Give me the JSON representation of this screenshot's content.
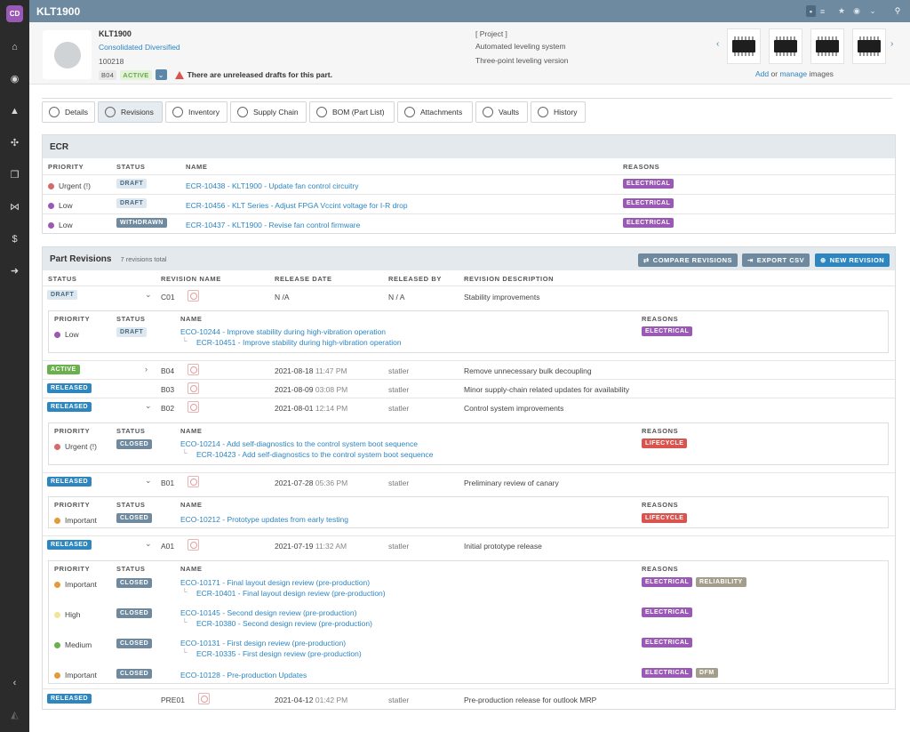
{
  "app": {
    "logo": "CD",
    "title": "KLT1900"
  },
  "sidebar": [
    "home-icon",
    "dashboard-icon",
    "components-icon",
    "network-icon",
    "box-icon",
    "share-icon",
    "dollar-icon",
    "arrow-right-icon"
  ],
  "sidebar_collapse": "‹",
  "header": {
    "part_number": "KLT1900",
    "company": "Consolidated Diversified",
    "number": "100218",
    "revision": "B04",
    "status": "ACTIVE",
    "warning": "There are unreleased drafts for this part.",
    "category": "[ Project ]",
    "description1": "Automated leveling system",
    "description2": "Three-point leveling version",
    "images_add": "Add",
    "images_or": "or",
    "images_manage": "manage",
    "images_suffix": "images"
  },
  "tabs": [
    {
      "label": "Details",
      "icon": "details-icon"
    },
    {
      "label": "Revisions",
      "icon": "revisions-icon"
    },
    {
      "label": "Inventory",
      "icon": "inventory-icon"
    },
    {
      "label": "Supply Chain",
      "icon": "supply-chain-icon"
    },
    {
      "label": "BOM (Part List)",
      "icon": "bom-icon"
    },
    {
      "label": "Attachments",
      "icon": "attachments-icon"
    },
    {
      "label": "Vaults",
      "icon": "vaults-icon"
    },
    {
      "label": "History",
      "icon": "history-icon"
    }
  ],
  "ecr": {
    "title": "ECR",
    "headers": {
      "priority": "PRIORITY",
      "status": "STATUS",
      "name": "NAME",
      "reasons": "REASONS"
    },
    "rows": [
      {
        "priority": "Urgent (!)",
        "color": "#d36b6b",
        "status": "DRAFT",
        "name": "ECR-10438 - KLT1900 - Update fan control circuitry",
        "reason": "ELECTRICAL"
      },
      {
        "priority": "Low",
        "color": "#9b59b6",
        "status": "DRAFT",
        "name": "ECR-10456 - KLT Series - Adjust FPGA Vccint voltage for I-R drop",
        "reason": "ELECTRICAL"
      },
      {
        "priority": "Low",
        "color": "#9b59b6",
        "status": "WITHDRAWN",
        "name": "ECR-10437 - KLT1900 - Revise fan control firmware",
        "reason": "ELECTRICAL"
      }
    ]
  },
  "revisions": {
    "title": "Part Revisions",
    "count": "7 revisions total",
    "buttons": {
      "compare": "COMPARE REVISIONS",
      "export": "EXPORT CSV",
      "new": "NEW REVISION"
    },
    "headers": {
      "status": "STATUS",
      "name": "REVISION NAME",
      "date": "RELEASE DATE",
      "by": "RELEASED BY",
      "desc": "REVISION DESCRIPTION"
    },
    "sub_headers": {
      "priority": "PRIORITY",
      "status": "STATUS",
      "name": "NAME",
      "reasons": "REASONS"
    },
    "rows": [
      {
        "status": "DRAFT",
        "name": "C01",
        "date": "N /A",
        "time": "",
        "by": "N / A",
        "desc": "Stability improvements"
      },
      {
        "status": "ACTIVE",
        "name": "B04",
        "date": "2021-08-18",
        "time": "11:47 PM",
        "by": "statler",
        "desc": "Remove unnecessary bulk decoupling"
      },
      {
        "status": "RELEASED",
        "name": "B03",
        "date": "2021-08-09",
        "time": "03:08 PM",
        "by": "statler",
        "desc": "Minor supply-chain related updates for availability"
      },
      {
        "status": "RELEASED",
        "name": "B02",
        "date": "2021-08-01",
        "time": "12:14 PM",
        "by": "statler",
        "desc": "Control system improvements"
      },
      {
        "status": "RELEASED",
        "name": "B01",
        "date": "2021-07-28",
        "time": "05:36 PM",
        "by": "statler",
        "desc": "Preliminary review of canary"
      },
      {
        "status": "RELEASED",
        "name": "A01",
        "date": "2021-07-19",
        "time": "11:32 AM",
        "by": "statler",
        "desc": "Initial prototype release"
      },
      {
        "status": "RELEASED",
        "name": "PRE01",
        "date": "2021-04-12",
        "time": "01:42 PM",
        "by": "statler",
        "desc": "Pre-production release for outlook MRP"
      }
    ],
    "c01_changes": [
      {
        "priority": "Low",
        "color": "#9b59b6",
        "status": "DRAFT",
        "eco": "ECO-10244 - Improve stability during high-vibration operation",
        "ecr": "ECR-10451 - Improve stability during high-vibration operation",
        "reasons": [
          "ELECTRICAL"
        ]
      }
    ],
    "b02_changes": [
      {
        "priority": "Urgent (!)",
        "color": "#d36b6b",
        "status": "CLOSED",
        "eco": "ECO-10214 - Add self-diagnostics to the control system boot sequence",
        "ecr": "ECR-10423 - Add self-diagnostics to the control system boot sequence",
        "reasons": [
          "LIFECYCLE"
        ]
      }
    ],
    "b01_changes": [
      {
        "priority": "Important",
        "color": "#e59a3a",
        "status": "CLOSED",
        "eco": "ECO-10212 - Prototype updates from early testing",
        "ecr": "",
        "reasons": [
          "LIFECYCLE"
        ]
      }
    ],
    "a01_changes": [
      {
        "priority": "Important",
        "color": "#e59a3a",
        "status": "CLOSED",
        "eco": "ECO-10171 - Final layout design review (pre-production)",
        "ecr": "ECR-10401 - Final layout design review (pre-production)",
        "reasons": [
          "ELECTRICAL",
          "RELIABILITY"
        ]
      },
      {
        "priority": "High",
        "color": "#f2e59a",
        "status": "CLOSED",
        "eco": "ECO-10145 - Second design review (pre-production)",
        "ecr": "ECR-10380 - Second design review (pre-production)",
        "reasons": [
          "ELECTRICAL"
        ]
      },
      {
        "priority": "Medium",
        "color": "#6ab04c",
        "status": "CLOSED",
        "eco": "ECO-10131 - First design review (pre-production)",
        "ecr": "ECR-10335 - First design review (pre-production)",
        "reasons": [
          "ELECTRICAL"
        ]
      },
      {
        "priority": "Important",
        "color": "#e59a3a",
        "status": "CLOSED",
        "eco": "ECO-10128 - Pre-production Updates",
        "ecr": "",
        "reasons": [
          "ELECTRICAL",
          "DFM"
        ]
      }
    ]
  }
}
